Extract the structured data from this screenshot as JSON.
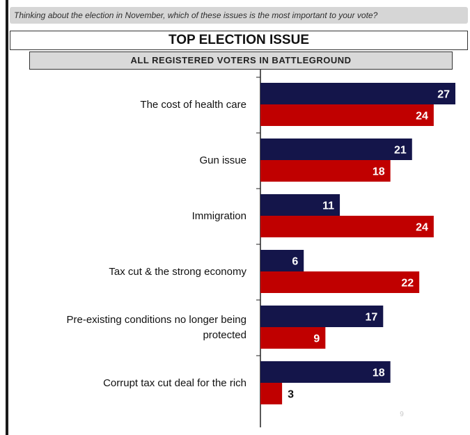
{
  "header": {
    "question": "Thinking about the election in November, which of these issues is the most important to your vote?",
    "title": "TOP ELECTION ISSUE",
    "subtitle": "ALL REGISTERED VOTERS IN BATTLEGROUND"
  },
  "footer": {
    "page_number": "9"
  },
  "colors": {
    "series1": "#14154a",
    "series2": "#c00000"
  },
  "chart_data": {
    "type": "bar",
    "orientation": "horizontal",
    "categories": [
      "The cost of health care",
      "Gun issue",
      "Immigration",
      "Tax cut & the strong economy",
      "Pre-existing conditions no longer being protected",
      "Corrupt tax cut deal for the rich"
    ],
    "category_lines": [
      [
        "The cost of health care"
      ],
      [
        "Gun issue"
      ],
      [
        "Immigration"
      ],
      [
        "Tax cut & the strong economy"
      ],
      [
        "Pre-existing conditions no longer being",
        "protected"
      ],
      [
        "Corrupt tax cut deal for the rich"
      ]
    ],
    "series": [
      {
        "values": [
          27,
          21,
          11,
          6,
          17,
          18
        ]
      },
      {
        "values": [
          24,
          18,
          24,
          22,
          9,
          3
        ]
      }
    ],
    "xlim": [
      0,
      27
    ],
    "grid": false,
    "legend": "none"
  }
}
